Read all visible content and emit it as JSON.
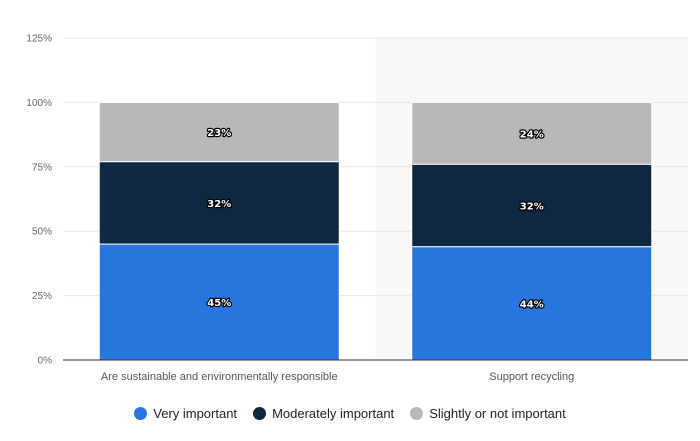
{
  "chart_data": {
    "type": "bar",
    "stacked": true,
    "categories": [
      "Are sustainable and environmentally responsible",
      "Support recycling"
    ],
    "series": [
      {
        "name": "Very important",
        "color": "#2876dd",
        "values": [
          45,
          44
        ]
      },
      {
        "name": "Moderately important",
        "color": "#0f2841",
        "values": [
          32,
          32
        ]
      },
      {
        "name": "Slightly or not important",
        "color": "#b8b8b8",
        "values": [
          23,
          24
        ]
      }
    ],
    "data_labels": [
      [
        "45%",
        "44%"
      ],
      [
        "32%",
        "32%"
      ],
      [
        "23%",
        "24%"
      ]
    ],
    "yticks": [
      "0%",
      "25%",
      "50%",
      "75%",
      "100%",
      "125%"
    ],
    "ylim": [
      0,
      125
    ],
    "grid": true,
    "legend_position": "bottom-center",
    "title": "",
    "xlabel": "",
    "ylabel": ""
  }
}
